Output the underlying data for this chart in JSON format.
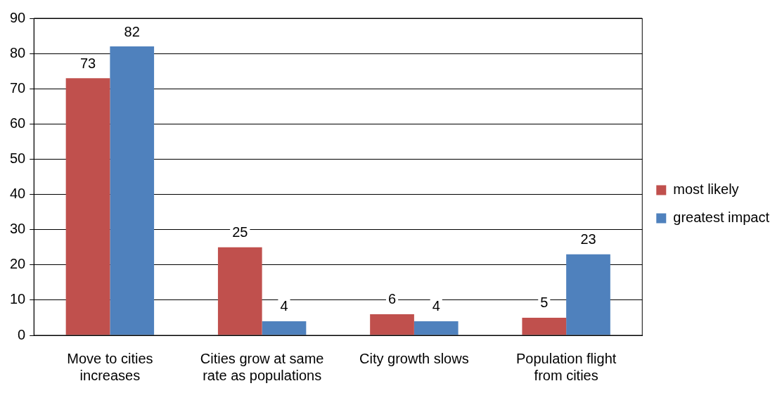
{
  "chart_data": {
    "type": "bar",
    "categories": [
      "Move to cities increases",
      "Cities grow at same rate as populations",
      "City growth slows",
      "Population flight from cities"
    ],
    "series": [
      {
        "name": "most likely",
        "color": "#c0504d",
        "values": [
          73,
          25,
          6,
          5
        ]
      },
      {
        "name": "greatest impact",
        "color": "#4f81bd",
        "values": [
          82,
          4,
          4,
          23
        ]
      }
    ],
    "ylim": [
      0,
      90
    ],
    "yticks": [
      0,
      10,
      20,
      30,
      40,
      50,
      60,
      70,
      80,
      90
    ],
    "grid": "y",
    "legend": "right",
    "data_labels": true
  }
}
